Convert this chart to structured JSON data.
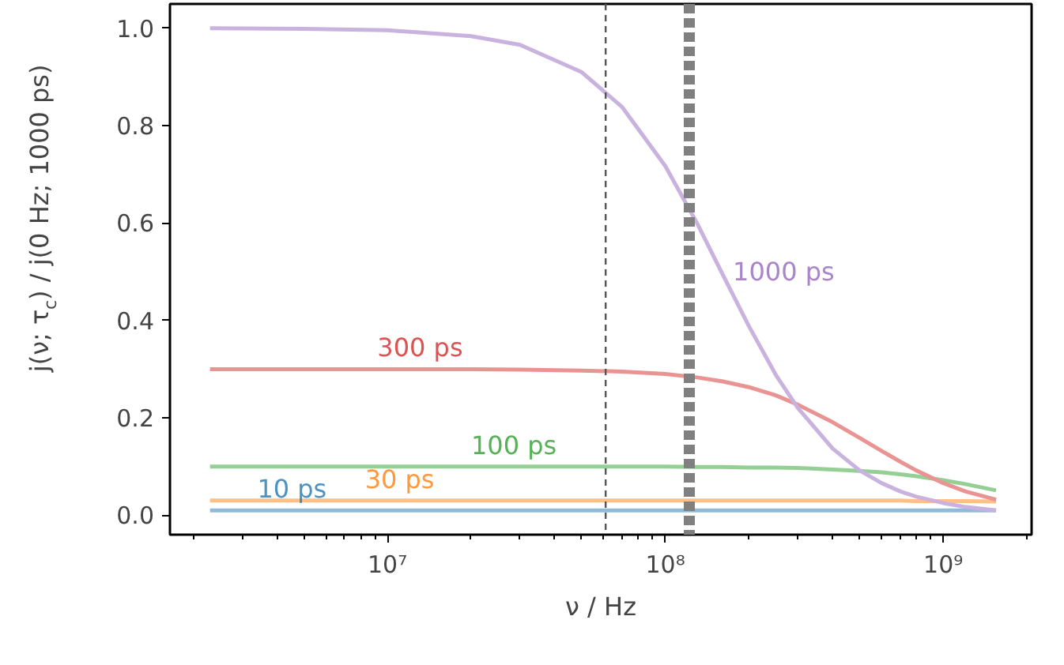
{
  "chart_data": {
    "type": "line",
    "xlabel": "ν / Hz",
    "ylabel": "j(ν; τ$_{c}$) / j(0 Hz; 1000 ps)",
    "log": "x",
    "grid": false,
    "marker": "none",
    "line_style": "solid",
    "x": [
      2300000.0,
      5000000.0,
      10000000.0,
      20000000.0,
      30000000.0,
      50000000.0,
      70000000.0,
      100000000.0,
      130000000.0,
      160000000.0,
      200000000.0,
      250000000.0,
      300000000.0,
      400000000.0,
      500000000.0,
      600000000.0,
      700000000.0,
      800000000.0,
      1000000000.0,
      1200000000.0,
      1550000000.0
    ],
    "series": [
      {
        "color": "#8fbbd9",
        "values": [
          0.01,
          0.01,
          0.01,
          0.01,
          0.01,
          0.01,
          0.01,
          0.01,
          0.01,
          0.01,
          0.01,
          0.01,
          0.01,
          0.01,
          0.01,
          0.01,
          0.01,
          0.01,
          0.01,
          0.01,
          0.01
        ]
      },
      {
        "color": "#ffbf86",
        "values": [
          0.03,
          0.03,
          0.03,
          0.03,
          0.03,
          0.03,
          0.03,
          0.03,
          0.03,
          0.03,
          0.03,
          0.03,
          0.03,
          0.03,
          0.03,
          0.03,
          0.03,
          0.029,
          0.029,
          0.029,
          0.028
        ]
      },
      {
        "color": "#96cf96",
        "values": [
          0.1,
          0.1,
          0.1,
          0.1,
          0.1,
          0.1,
          0.1,
          0.1,
          0.099,
          0.099,
          0.098,
          0.098,
          0.097,
          0.094,
          0.091,
          0.088,
          0.084,
          0.08,
          0.072,
          0.064,
          0.051
        ]
      },
      {
        "color": "#ea9393",
        "values": [
          0.3,
          0.3,
          0.3,
          0.3,
          0.299,
          0.297,
          0.295,
          0.29,
          0.283,
          0.275,
          0.263,
          0.246,
          0.227,
          0.191,
          0.159,
          0.132,
          0.11,
          0.092,
          0.066,
          0.049,
          0.032
        ]
      },
      {
        "color": "#c9b3de",
        "values": [
          1.0,
          0.999,
          0.996,
          0.984,
          0.966,
          0.91,
          0.838,
          0.717,
          0.6,
          0.497,
          0.388,
          0.288,
          0.22,
          0.137,
          0.092,
          0.066,
          0.049,
          0.038,
          0.025,
          0.017,
          0.01
        ]
      }
    ],
    "annotations": [
      {
        "text": "10 ps",
        "x": 3400000.0,
        "y": 0.01
      },
      {
        "text": "30 ps",
        "x": 8300000.0,
        "y": 0.03
      },
      {
        "text": "100 ps",
        "x": 20000000.0,
        "y": 0.1
      },
      {
        "text": "300 ps",
        "x": 9200000.0,
        "y": 0.3
      },
      {
        "text": "1000 ps",
        "x": 175000000.0,
        "y": 0.47
      }
    ],
    "ref_lines": [
      {
        "axis": "x",
        "value": 61000000.0,
        "color": "#555555",
        "line_style": "dashed"
      },
      {
        "axis": "x",
        "value": 122000000.0,
        "color": "#808080",
        "line_style": "dotted"
      }
    ],
    "xlim": [
      1650000.0,
      2080000000.0
    ],
    "ylim": [
      -0.04,
      1.05
    ],
    "xticks": [
      {
        "value": 10000000.0,
        "label": "10⁷"
      },
      {
        "value": 100000000.0,
        "label": "10⁸"
      },
      {
        "value": 1000000000.0,
        "label": "10⁹"
      }
    ],
    "yticks": [
      {
        "value": 0,
        "label": "0.0"
      },
      {
        "value": 0.2,
        "label": "0.2"
      },
      {
        "value": 0.4,
        "label": "0.4"
      },
      {
        "value": 0.6,
        "label": "0.6"
      },
      {
        "value": 0.8,
        "label": "0.8"
      },
      {
        "value": 1,
        "label": "1.0"
      }
    ]
  }
}
